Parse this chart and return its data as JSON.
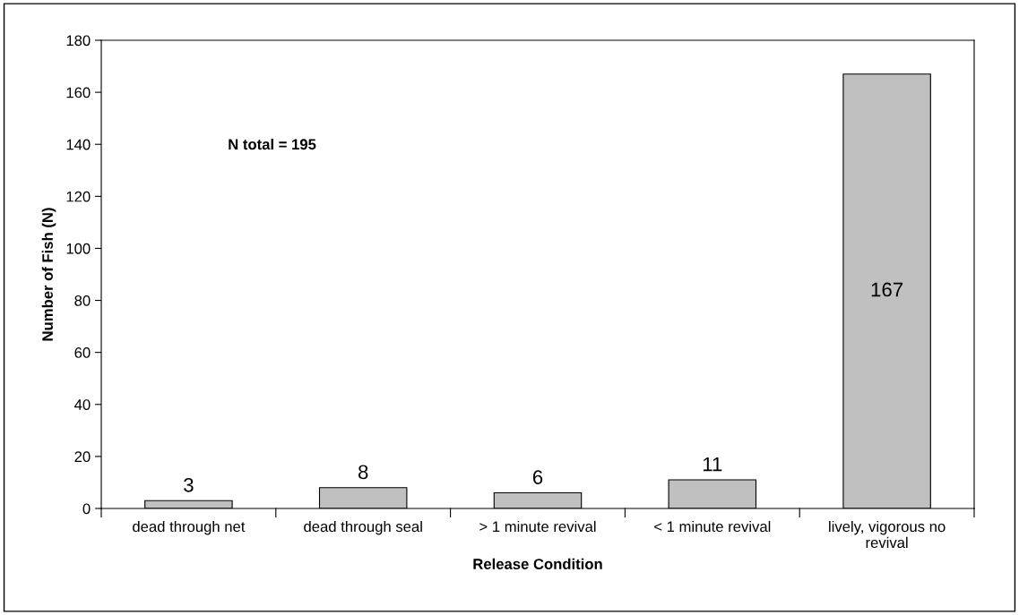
{
  "chart_data": {
    "type": "bar",
    "xlabel": "Release Condition",
    "ylabel": "Number of Fish (N)",
    "categories": [
      "dead through net",
      "dead through seal",
      "> 1 minute revival",
      "< 1 minute revival",
      "lively, vigorous no revival"
    ],
    "values": [
      3,
      8,
      6,
      11,
      167
    ],
    "color": "#c0c0c0",
    "ylim": [
      0,
      180
    ],
    "yticks": [
      0,
      20,
      40,
      60,
      80,
      100,
      120,
      140,
      160,
      180
    ],
    "data_labels": true,
    "grid": false,
    "legend": false,
    "annotations": [
      "N total = 195"
    ]
  }
}
